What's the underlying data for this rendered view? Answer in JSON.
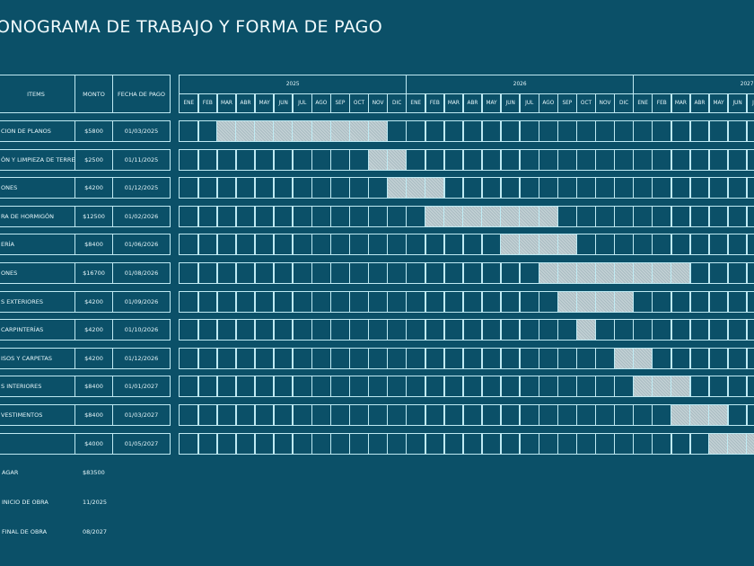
{
  "title": "ONOGRAMA DE TRABAJO Y FORMA DE PAGO",
  "table": {
    "headers": {
      "items": "ITEMS",
      "monto": "MONTO",
      "fecha": "FECHA DE PAGO"
    },
    "rows": [
      {
        "item": "CION DE PLANOS",
        "monto": "$5800",
        "fecha": "01/03/2025",
        "months": [
          2,
          3,
          4,
          5,
          6,
          7,
          8,
          9,
          10
        ]
      },
      {
        "item": "ÓN Y LIMPIEZA DE TERRENO",
        "monto": "$2500",
        "fecha": "01/11/2025",
        "months": [
          10,
          11
        ]
      },
      {
        "item": "ONES",
        "monto": "$4200",
        "fecha": "01/12/2025",
        "months": [
          11,
          12,
          13
        ]
      },
      {
        "item": "RA DE HORMIGÓN",
        "monto": "$12500",
        "fecha": "01/02/2026",
        "months": [
          13,
          14,
          15,
          16,
          17,
          18,
          19
        ]
      },
      {
        "item": "ERÍA",
        "monto": "$8400",
        "fecha": "01/06/2026",
        "months": [
          17,
          18,
          19,
          20
        ]
      },
      {
        "item": "ONES",
        "monto": "$16700",
        "fecha": "01/08/2026",
        "months": [
          19,
          20,
          21,
          22,
          23,
          24,
          25,
          26
        ]
      },
      {
        "item": "S EXTERIORES",
        "monto": "$4200",
        "fecha": "01/09/2026",
        "months": [
          20,
          21,
          22,
          23
        ]
      },
      {
        "item": "CARPINTERÍAS",
        "monto": "$4200",
        "fecha": "01/10/2026",
        "months": [
          21
        ]
      },
      {
        "item": "ISOS Y CARPETAS",
        "monto": "$4200",
        "fecha": "01/12/2026",
        "months": [
          23,
          24
        ]
      },
      {
        "item": "S INTERIORES",
        "monto": "$8400",
        "fecha": "01/01/2027",
        "months": [
          24,
          25,
          26
        ]
      },
      {
        "item": "VESTIMENTOS",
        "monto": "$8400",
        "fecha": "01/03/2027",
        "months": [
          26,
          27,
          28
        ]
      },
      {
        "item": "",
        "monto": "$4000",
        "fecha": "01/05/2027",
        "months": [
          28,
          29,
          30
        ]
      }
    ]
  },
  "summary": [
    {
      "label": "AGAR",
      "value": "$83500"
    },
    {
      "label": "INICIO DE OBRA",
      "value": "11/2025"
    },
    {
      "label": "FINAL DE OBRA",
      "value": "08/2027"
    }
  ],
  "gantt": {
    "years": [
      "2025",
      "2026",
      "2027"
    ],
    "months": [
      "ENE",
      "FEB",
      "MAR",
      "ABR",
      "MAY",
      "JUN",
      "JUL",
      "AGO",
      "SEP",
      "OCT",
      "NOV",
      "DIC"
    ]
  },
  "colors": {
    "background": "#0b5068",
    "border": "#bfeaf3",
    "shaded": "#b8c8cc"
  }
}
